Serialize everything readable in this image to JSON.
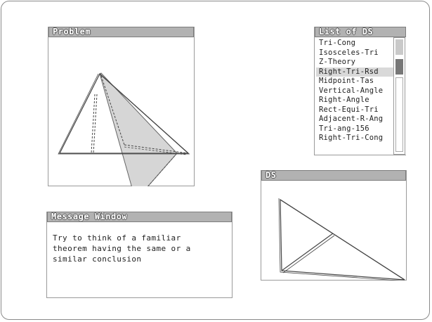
{
  "problem_window": {
    "title": "Problem"
  },
  "list_window": {
    "title": "List of DS",
    "items": [
      "Tri-Cong",
      "Isosceles-Tri",
      "Z-Theory",
      "Right-Tri-Rsd",
      "Midpoint-Tas",
      "Vertical-Angle",
      "Right-Angle",
      "Rect-Equi-Tri",
      "Adjacent-R-Ang",
      "Tri-ang-156",
      "Right-Tri-Cong"
    ],
    "selected_index": 3
  },
  "ds_window": {
    "title": "DS"
  },
  "message_window": {
    "title": "Message Window",
    "text": "Try to think of a familiar\ntheorem having the same or a\nsimilar conclusion"
  },
  "colors": {
    "titlebar": "#b2b2b2",
    "shade": "#d8d8d8",
    "selection": "#d9d9d9"
  }
}
